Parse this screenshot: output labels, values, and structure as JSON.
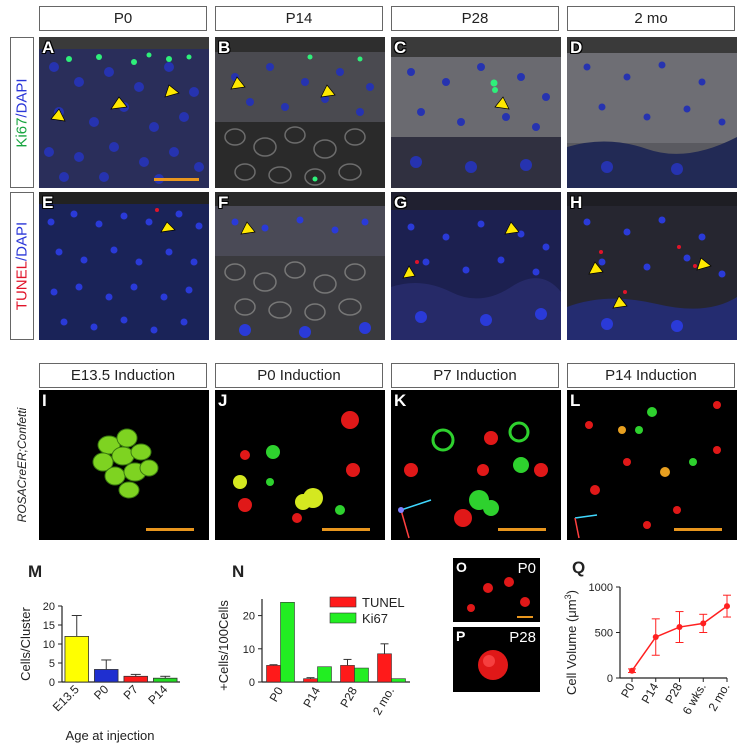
{
  "row1": {
    "headers": [
      "P0",
      "P14",
      "P28",
      "2 mo"
    ],
    "label_a": "Ki67",
    "label_b": "/DAPI",
    "panels": [
      "A",
      "B",
      "C",
      "D"
    ],
    "colors": {
      "ki67": "#2ef07a",
      "dapi": "#2a36d8"
    }
  },
  "row2": {
    "label_a": "TUNEL",
    "label_b": "/DAPI",
    "panels": [
      "E",
      "F",
      "G",
      "H"
    ],
    "colors": {
      "tunel": "#e0142a",
      "dapi": "#2a36d8"
    }
  },
  "row3": {
    "headers": [
      "E13.5 Induction",
      "P0 Induction",
      "P7 Induction",
      "P14 Induction"
    ],
    "side_label": "ROSACreER;Confetti",
    "panels": [
      "I",
      "J",
      "K",
      "L"
    ],
    "scale_bar_color": "#e8961e"
  },
  "panel_O": {
    "letter": "O",
    "tag": "P0"
  },
  "panel_P": {
    "letter": "P",
    "tag": "P28"
  },
  "chart_data": [
    {
      "panel": "M",
      "type": "bar",
      "categories": [
        "E13.5",
        "P0",
        "P7",
        "P14"
      ],
      "values": [
        12,
        3.3,
        1.5,
        1.0
      ],
      "errors": [
        5.5,
        2.5,
        0.5,
        0.5
      ],
      "colors": [
        "#ffff00",
        "#1f2fd0",
        "#ff1a1a",
        "#22dd22"
      ],
      "ylabel": "Cells/Cluster",
      "xlabel": "Age at injection",
      "ylim": [
        0,
        20
      ],
      "yticks": [
        0,
        5,
        10,
        15,
        20
      ]
    },
    {
      "panel": "N",
      "type": "bar",
      "categories": [
        "P0",
        "P14",
        "P28",
        "2 mo."
      ],
      "series": [
        {
          "name": "TUNEL",
          "color": "#ff1a1a",
          "values": [
            5,
            1,
            5,
            8.5
          ],
          "errors": [
            0.2,
            0.3,
            1.8,
            3
          ]
        },
        {
          "name": "Ki67",
          "color": "#22ee22",
          "values": [
            24,
            4.6,
            4.2,
            1
          ],
          "errors": [
            0,
            0,
            0,
            0
          ]
        }
      ],
      "ylabel": "+Cells/100Cells",
      "ylim": [
        0,
        25
      ],
      "yticks": [
        0,
        10,
        20
      ]
    },
    {
      "panel": "Q",
      "type": "line",
      "categories": [
        "P0",
        "P14",
        "P28",
        "6 wks.",
        "2 mo."
      ],
      "values": [
        80,
        450,
        560,
        600,
        790
      ],
      "errors": [
        20,
        200,
        170,
        100,
        120
      ],
      "color": "#ff2020",
      "ylabel": "Cell Volume (μm³)",
      "ylabel_main": "Cell Volume (μm",
      "ylabel_exp": "3",
      "ylabel_close": ")",
      "ylim": [
        0,
        1000
      ],
      "yticks": [
        0,
        500,
        1000
      ]
    }
  ]
}
